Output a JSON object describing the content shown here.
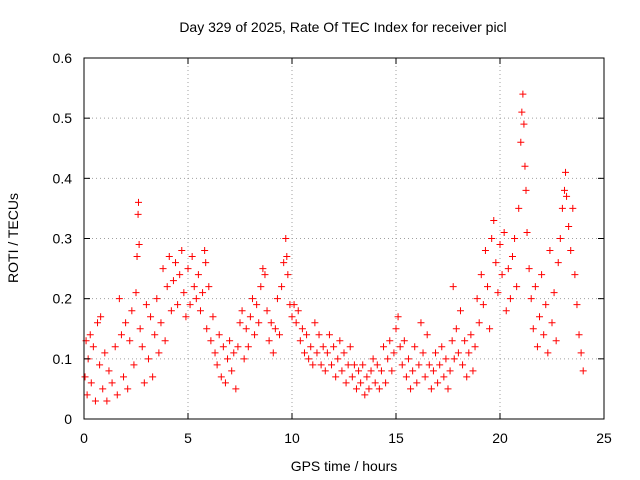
{
  "chart_data": {
    "type": "scatter",
    "title": "Day 329 of 2025, Rate Of TEC Index for receiver picl",
    "xlabel": "GPS time / hours",
    "ylabel": "ROTI / TECUs",
    "xlim": [
      0,
      25
    ],
    "ylim": [
      0,
      0.6
    ],
    "xticks": [
      0,
      5,
      10,
      15,
      20,
      25
    ],
    "yticks": [
      0,
      0.1,
      0.2,
      0.3,
      0.4,
      0.5,
      0.6
    ],
    "xtick_labels": [
      "0",
      "5",
      "10",
      "15",
      "20",
      "25"
    ],
    "ytick_labels": [
      "0",
      "0.1",
      "0.2",
      "0.3",
      "0.4",
      "0.5",
      "0.6"
    ],
    "grid": true,
    "marker": "+",
    "color": "#ff0000",
    "series": [
      {
        "name": "ROTI",
        "points": [
          [
            0.05,
            0.07
          ],
          [
            0.1,
            0.13
          ],
          [
            0.15,
            0.04
          ],
          [
            0.2,
            0.1
          ],
          [
            0.3,
            0.14
          ],
          [
            0.35,
            0.06
          ],
          [
            0.45,
            0.12
          ],
          [
            0.55,
            0.03
          ],
          [
            0.65,
            0.16
          ],
          [
            0.75,
            0.09
          ],
          [
            0.8,
            0.17
          ],
          [
            0.9,
            0.05
          ],
          [
            1.0,
            0.11
          ],
          [
            1.1,
            0.03
          ],
          [
            1.2,
            0.08
          ],
          [
            1.35,
            0.06
          ],
          [
            1.5,
            0.12
          ],
          [
            1.6,
            0.04
          ],
          [
            1.7,
            0.2
          ],
          [
            1.8,
            0.14
          ],
          [
            1.9,
            0.07
          ],
          [
            2.0,
            0.16
          ],
          [
            2.1,
            0.05
          ],
          [
            2.2,
            0.13
          ],
          [
            2.3,
            0.18
          ],
          [
            2.4,
            0.09
          ],
          [
            2.5,
            0.21
          ],
          [
            2.55,
            0.27
          ],
          [
            2.6,
            0.34
          ],
          [
            2.62,
            0.36
          ],
          [
            2.65,
            0.29
          ],
          [
            2.7,
            0.15
          ],
          [
            2.8,
            0.12
          ],
          [
            2.9,
            0.06
          ],
          [
            3.0,
            0.19
          ],
          [
            3.1,
            0.1
          ],
          [
            3.2,
            0.17
          ],
          [
            3.3,
            0.07
          ],
          [
            3.4,
            0.14
          ],
          [
            3.5,
            0.2
          ],
          [
            3.6,
            0.11
          ],
          [
            3.7,
            0.16
          ],
          [
            3.8,
            0.25
          ],
          [
            3.9,
            0.13
          ],
          [
            4.0,
            0.22
          ],
          [
            4.1,
            0.27
          ],
          [
            4.2,
            0.18
          ],
          [
            4.3,
            0.23
          ],
          [
            4.4,
            0.26
          ],
          [
            4.5,
            0.19
          ],
          [
            4.6,
            0.24
          ],
          [
            4.7,
            0.28
          ],
          [
            4.8,
            0.21
          ],
          [
            4.9,
            0.17
          ],
          [
            5.0,
            0.25
          ],
          [
            5.1,
            0.19
          ],
          [
            5.2,
            0.27
          ],
          [
            5.3,
            0.22
          ],
          [
            5.4,
            0.2
          ],
          [
            5.5,
            0.24
          ],
          [
            5.6,
            0.18
          ],
          [
            5.7,
            0.21
          ],
          [
            5.8,
            0.28
          ],
          [
            5.85,
            0.26
          ],
          [
            5.9,
            0.15
          ],
          [
            6.0,
            0.22
          ],
          [
            6.1,
            0.13
          ],
          [
            6.2,
            0.17
          ],
          [
            6.3,
            0.11
          ],
          [
            6.4,
            0.09
          ],
          [
            6.5,
            0.14
          ],
          [
            6.6,
            0.07
          ],
          [
            6.7,
            0.12
          ],
          [
            6.8,
            0.06
          ],
          [
            6.9,
            0.1
          ],
          [
            7.0,
            0.13
          ],
          [
            7.1,
            0.08
          ],
          [
            7.2,
            0.11
          ],
          [
            7.3,
            0.05
          ],
          [
            7.4,
            0.12
          ],
          [
            7.5,
            0.16
          ],
          [
            7.6,
            0.18
          ],
          [
            7.7,
            0.1
          ],
          [
            7.8,
            0.15
          ],
          [
            7.9,
            0.12
          ],
          [
            8.0,
            0.17
          ],
          [
            8.1,
            0.2
          ],
          [
            8.2,
            0.14
          ],
          [
            8.3,
            0.19
          ],
          [
            8.4,
            0.16
          ],
          [
            8.5,
            0.22
          ],
          [
            8.6,
            0.25
          ],
          [
            8.7,
            0.24
          ],
          [
            8.8,
            0.18
          ],
          [
            8.9,
            0.13
          ],
          [
            9.0,
            0.16
          ],
          [
            9.1,
            0.11
          ],
          [
            9.2,
            0.15
          ],
          [
            9.3,
            0.2
          ],
          [
            9.4,
            0.14
          ],
          [
            9.5,
            0.22
          ],
          [
            9.6,
            0.26
          ],
          [
            9.7,
            0.3
          ],
          [
            9.75,
            0.27
          ],
          [
            9.8,
            0.24
          ],
          [
            9.9,
            0.19
          ],
          [
            10.0,
            0.17
          ],
          [
            10.1,
            0.19
          ],
          [
            10.2,
            0.16
          ],
          [
            10.3,
            0.18
          ],
          [
            10.4,
            0.13
          ],
          [
            10.5,
            0.15
          ],
          [
            10.6,
            0.11
          ],
          [
            10.7,
            0.14
          ],
          [
            10.8,
            0.1
          ],
          [
            10.9,
            0.12
          ],
          [
            11.0,
            0.09
          ],
          [
            11.1,
            0.16
          ],
          [
            11.2,
            0.11
          ],
          [
            11.3,
            0.14
          ],
          [
            11.4,
            0.09
          ],
          [
            11.5,
            0.12
          ],
          [
            11.6,
            0.08
          ],
          [
            11.7,
            0.11
          ],
          [
            11.8,
            0.14
          ],
          [
            11.9,
            0.09
          ],
          [
            12.0,
            0.12
          ],
          [
            12.1,
            0.07
          ],
          [
            12.2,
            0.1
          ],
          [
            12.3,
            0.13
          ],
          [
            12.4,
            0.08
          ],
          [
            12.5,
            0.11
          ],
          [
            12.6,
            0.06
          ],
          [
            12.7,
            0.09
          ],
          [
            12.8,
            0.12
          ],
          [
            12.9,
            0.07
          ],
          [
            13.0,
            0.09
          ],
          [
            13.1,
            0.05
          ],
          [
            13.2,
            0.08
          ],
          [
            13.3,
            0.06
          ],
          [
            13.4,
            0.09
          ],
          [
            13.5,
            0.04
          ],
          [
            13.6,
            0.07
          ],
          [
            13.7,
            0.05
          ],
          [
            13.8,
            0.08
          ],
          [
            13.9,
            0.1
          ],
          [
            14.0,
            0.06
          ],
          [
            14.1,
            0.09
          ],
          [
            14.2,
            0.05
          ],
          [
            14.3,
            0.08
          ],
          [
            14.4,
            0.12
          ],
          [
            14.5,
            0.06
          ],
          [
            14.6,
            0.1
          ],
          [
            14.7,
            0.13
          ],
          [
            14.8,
            0.08
          ],
          [
            14.9,
            0.11
          ],
          [
            15.0,
            0.15
          ],
          [
            15.1,
            0.17
          ],
          [
            15.2,
            0.12
          ],
          [
            15.3,
            0.09
          ],
          [
            15.4,
            0.13
          ],
          [
            15.5,
            0.07
          ],
          [
            15.6,
            0.1
          ],
          [
            15.7,
            0.05
          ],
          [
            15.8,
            0.08
          ],
          [
            15.9,
            0.12
          ],
          [
            16.0,
            0.06
          ],
          [
            16.1,
            0.09
          ],
          [
            16.2,
            0.16
          ],
          [
            16.3,
            0.11
          ],
          [
            16.4,
            0.07
          ],
          [
            16.5,
            0.14
          ],
          [
            16.6,
            0.09
          ],
          [
            16.7,
            0.05
          ],
          [
            16.8,
            0.08
          ],
          [
            16.9,
            0.11
          ],
          [
            17.0,
            0.06
          ],
          [
            17.1,
            0.09
          ],
          [
            17.2,
            0.12
          ],
          [
            17.3,
            0.07
          ],
          [
            17.4,
            0.1
          ],
          [
            17.5,
            0.05
          ],
          [
            17.6,
            0.08
          ],
          [
            17.7,
            0.13
          ],
          [
            17.75,
            0.22
          ],
          [
            17.8,
            0.1
          ],
          [
            17.9,
            0.15
          ],
          [
            18.0,
            0.11
          ],
          [
            18.1,
            0.18
          ],
          [
            18.2,
            0.09
          ],
          [
            18.3,
            0.13
          ],
          [
            18.4,
            0.07
          ],
          [
            18.5,
            0.11
          ],
          [
            18.6,
            0.14
          ],
          [
            18.7,
            0.08
          ],
          [
            18.8,
            0.12
          ],
          [
            18.9,
            0.2
          ],
          [
            19.0,
            0.16
          ],
          [
            19.1,
            0.24
          ],
          [
            19.2,
            0.19
          ],
          [
            19.3,
            0.28
          ],
          [
            19.4,
            0.22
          ],
          [
            19.5,
            0.15
          ],
          [
            19.6,
            0.3
          ],
          [
            19.7,
            0.33
          ],
          [
            19.8,
            0.26
          ],
          [
            19.9,
            0.21
          ],
          [
            20.0,
            0.29
          ],
          [
            20.1,
            0.24
          ],
          [
            20.2,
            0.31
          ],
          [
            20.3,
            0.18
          ],
          [
            20.4,
            0.25
          ],
          [
            20.5,
            0.2
          ],
          [
            20.6,
            0.27
          ],
          [
            20.7,
            0.3
          ],
          [
            20.8,
            0.22
          ],
          [
            20.9,
            0.35
          ],
          [
            21.0,
            0.46
          ],
          [
            21.05,
            0.51
          ],
          [
            21.1,
            0.54
          ],
          [
            21.15,
            0.49
          ],
          [
            21.2,
            0.42
          ],
          [
            21.25,
            0.38
          ],
          [
            21.3,
            0.31
          ],
          [
            21.4,
            0.25
          ],
          [
            21.5,
            0.2
          ],
          [
            21.6,
            0.15
          ],
          [
            21.7,
            0.22
          ],
          [
            21.8,
            0.12
          ],
          [
            21.9,
            0.17
          ],
          [
            22.0,
            0.24
          ],
          [
            22.1,
            0.14
          ],
          [
            22.2,
            0.19
          ],
          [
            22.3,
            0.11
          ],
          [
            22.4,
            0.28
          ],
          [
            22.5,
            0.16
          ],
          [
            22.6,
            0.21
          ],
          [
            22.7,
            0.13
          ],
          [
            22.8,
            0.26
          ],
          [
            22.9,
            0.3
          ],
          [
            23.0,
            0.35
          ],
          [
            23.1,
            0.38
          ],
          [
            23.15,
            0.41
          ],
          [
            23.2,
            0.37
          ],
          [
            23.3,
            0.32
          ],
          [
            23.4,
            0.28
          ],
          [
            23.5,
            0.35
          ],
          [
            23.6,
            0.24
          ],
          [
            23.7,
            0.19
          ],
          [
            23.8,
            0.14
          ],
          [
            23.9,
            0.11
          ],
          [
            24.0,
            0.08
          ]
        ]
      }
    ]
  }
}
